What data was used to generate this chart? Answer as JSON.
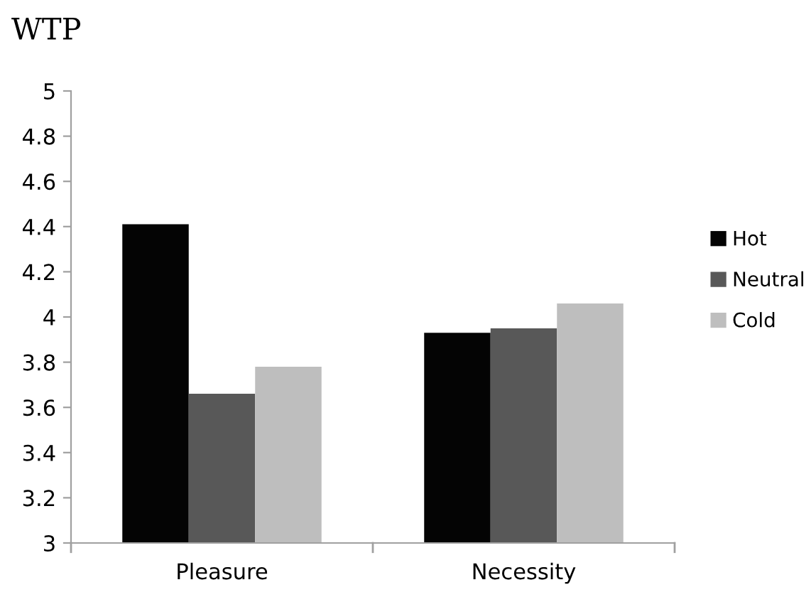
{
  "chart_data": {
    "type": "bar",
    "title": "WTP",
    "categories": [
      "Pleasure",
      "Necessity"
    ],
    "series": [
      {
        "name": "Hot",
        "color": "#040404",
        "values": [
          4.41,
          3.93
        ]
      },
      {
        "name": "Neutral",
        "color": "#585858",
        "values": [
          3.66,
          3.95
        ]
      },
      {
        "name": "Cold",
        "color": "#bebebe",
        "values": [
          3.78,
          4.06
        ]
      }
    ],
    "ylim": [
      3,
      5
    ],
    "yticks": [
      3,
      3.2,
      3.4,
      3.6,
      3.8,
      4,
      4.2,
      4.4,
      4.6,
      4.8,
      5
    ],
    "grid": false,
    "legend": "right"
  }
}
